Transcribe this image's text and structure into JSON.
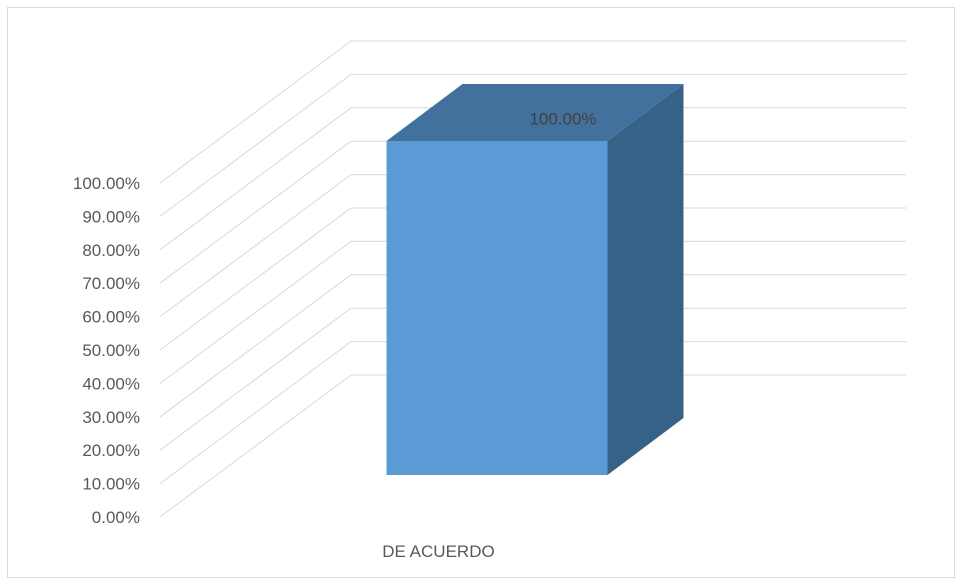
{
  "chart_data": {
    "type": "bar",
    "style": "3d-column",
    "categories": [
      "DE ACUERDO"
    ],
    "series": [
      {
        "values": [
          100.0
        ],
        "data_labels": [
          "100.00%"
        ]
      }
    ],
    "ylim": [
      0,
      100
    ],
    "yticks": [
      0,
      10,
      20,
      30,
      40,
      50,
      60,
      70,
      80,
      90,
      100
    ],
    "ytick_labels": [
      "0.00%",
      "10.00%",
      "20.00%",
      "30.00%",
      "40.00%",
      "50.00%",
      "60.00%",
      "70.00%",
      "80.00%",
      "90.00%",
      "100.00%"
    ],
    "grid": true,
    "legend": "none",
    "colors": {
      "front": "#5b9bd5",
      "top": "#41719c",
      "side": "#376287",
      "grid": "#d9d9d9",
      "text": "#595959"
    }
  }
}
